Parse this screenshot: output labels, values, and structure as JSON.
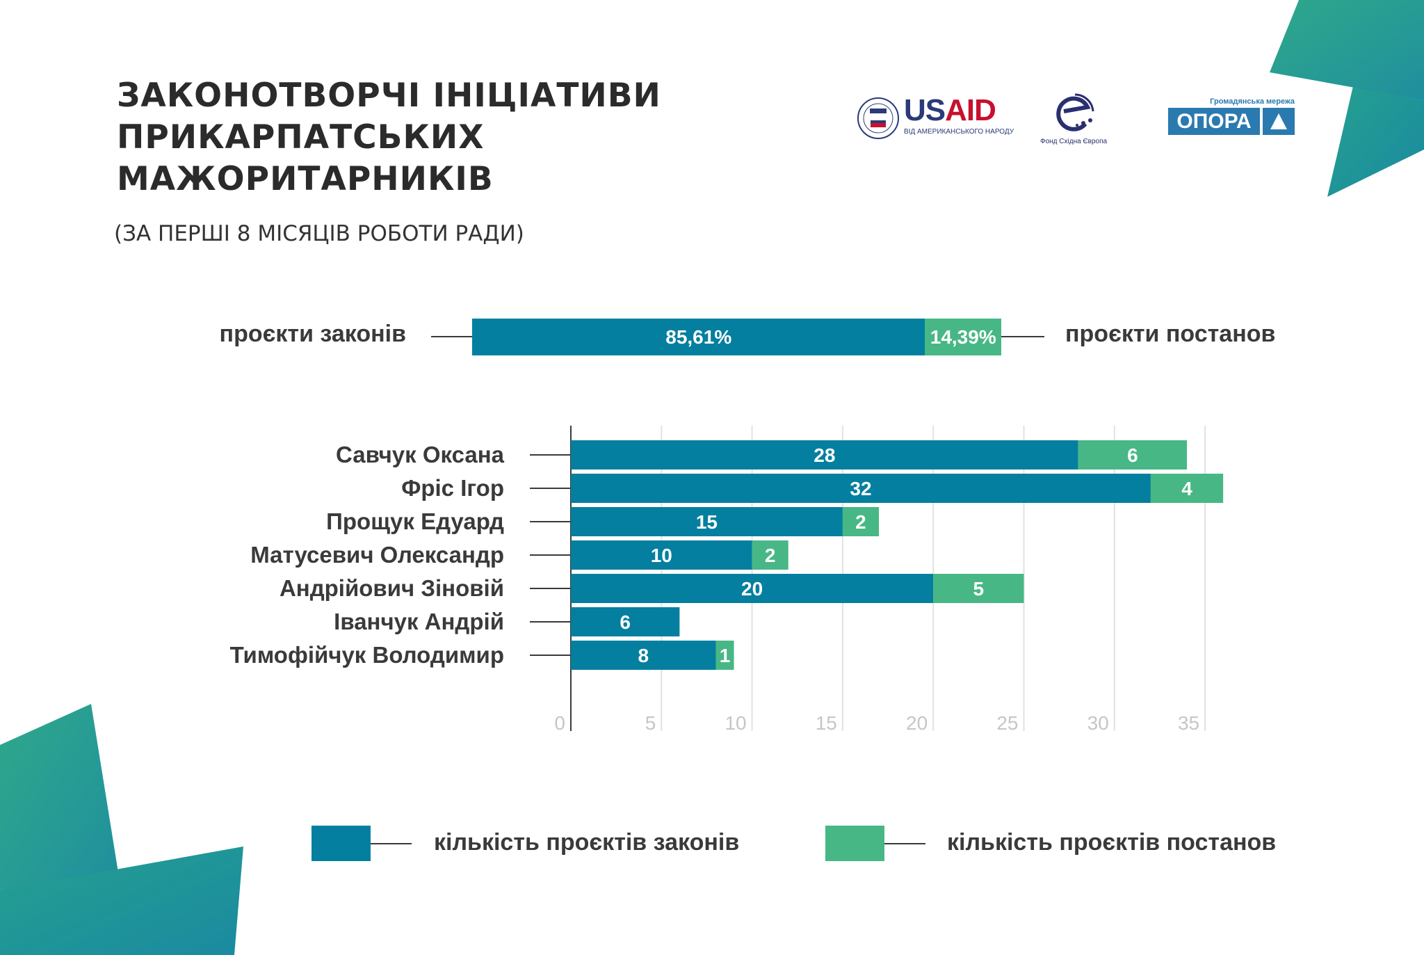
{
  "header": {
    "title_lines": [
      "ЗАКОНОТВОРЧІ ІНІЦІАТИВИ",
      "ПРИКАРПАТСЬКИХ",
      "МАЖОРИТАРНИКІВ"
    ],
    "subtitle": "(ЗА ПЕРШІ 8 МІСЯЦІВ РОБОТИ РАДИ)"
  },
  "logos": {
    "usaid": {
      "name": "USAID",
      "tagline": "ВІД АМЕРИКАНСЬКОГО НАРОДУ"
    },
    "eef": {
      "name": "Фонд Східна Європа"
    },
    "opora": {
      "tagline": "Громадянська мережа",
      "name": "ОПОРА"
    }
  },
  "share": {
    "left_label": "проєкти законів",
    "right_label": "проєкти постанов",
    "laws_pct": 85.61,
    "laws_text": "85,61%",
    "resolutions_pct": 14.39,
    "resolutions_text": "14,39%"
  },
  "colors": {
    "laws": "#047f9f",
    "resolutions": "#47b785",
    "tick": "#c6c6c6",
    "grid": "#e2e2e2"
  },
  "chart_data": {
    "type": "bar",
    "orientation": "horizontal",
    "stacked": true,
    "categories": [
      "Савчук Оксана",
      "Фріс Ігор",
      "Прощук Едуард",
      "Матусевич Олександр",
      "Андрійович Зіновій",
      "Іванчук Андрій",
      "Тимофійчук Володимир"
    ],
    "series": [
      {
        "name": "кількість проєктів законів",
        "values": [
          28,
          32,
          15,
          10,
          20,
          6,
          8
        ]
      },
      {
        "name": "кількість проєктів постанов",
        "values": [
          6,
          4,
          2,
          2,
          5,
          0,
          1
        ]
      }
    ],
    "xlim": [
      0,
      35
    ],
    "xticks": [
      "0",
      "5",
      "10",
      "15",
      "20",
      "25",
      "30",
      "35"
    ],
    "grid": true,
    "legend": "bottom"
  }
}
